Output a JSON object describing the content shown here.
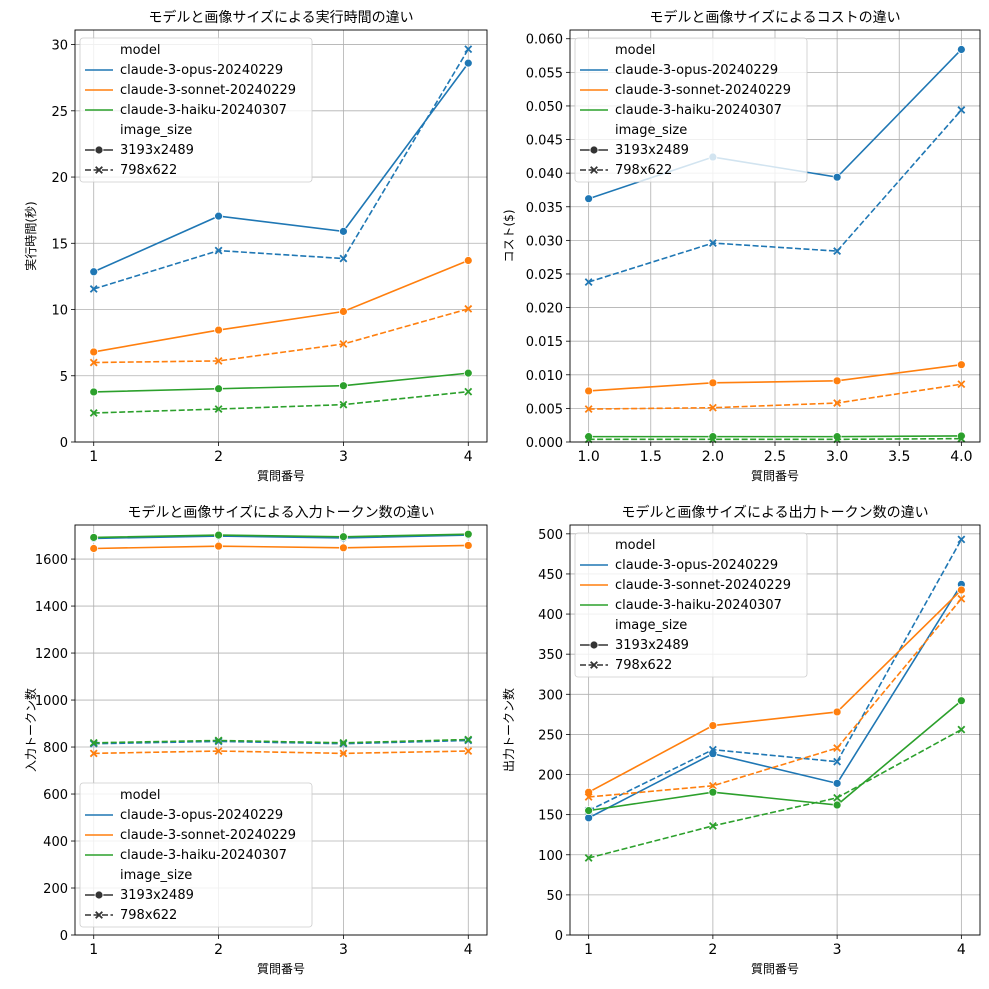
{
  "colors": {
    "opus": "#1f77b4",
    "sonnet": "#ff7f0e",
    "haiku": "#2ca02c",
    "grid": "#b0b0b0"
  },
  "legend": {
    "hue_title": "model",
    "style_title": "image_size",
    "models": [
      "claude-3-opus-20240229",
      "claude-3-sonnet-20240229",
      "claude-3-haiku-20240307"
    ],
    "sizes": [
      "3193x2489",
      "798x622"
    ]
  },
  "chart_data": [
    {
      "type": "line",
      "title": "モデルと画像サイズによる実行時間の違い",
      "xlabel": "質問番号",
      "ylabel": "実行時間(秒)",
      "x": [
        1,
        2,
        3,
        4
      ],
      "xticks": [
        "1",
        "2",
        "3",
        "4"
      ],
      "yticks": [
        "0",
        "5",
        "10",
        "15",
        "20",
        "25",
        "30"
      ],
      "xlim": [
        0.85,
        4.15
      ],
      "ylim": [
        0,
        31.1
      ],
      "grid": true,
      "legend_placement": "upper-left",
      "series": [
        {
          "model": "claude-3-opus-20240229",
          "image_size": "3193x2489",
          "values": [
            12.85,
            17.05,
            15.9,
            28.6
          ]
        },
        {
          "model": "claude-3-opus-20240229",
          "image_size": "798x622",
          "values": [
            11.55,
            14.45,
            13.85,
            29.65
          ]
        },
        {
          "model": "claude-3-sonnet-20240229",
          "image_size": "3193x2489",
          "values": [
            6.8,
            8.45,
            9.85,
            13.7
          ]
        },
        {
          "model": "claude-3-sonnet-20240229",
          "image_size": "798x622",
          "values": [
            6.0,
            6.12,
            7.4,
            10.05
          ]
        },
        {
          "model": "claude-3-haiku-20240307",
          "image_size": "3193x2489",
          "values": [
            3.78,
            4.02,
            4.25,
            5.2
          ]
        },
        {
          "model": "claude-3-haiku-20240307",
          "image_size": "798x622",
          "values": [
            2.19,
            2.49,
            2.82,
            3.8
          ]
        }
      ]
    },
    {
      "type": "line",
      "title": "モデルと画像サイズによるコストの違い",
      "xlabel": "質問番号",
      "ylabel": "コスト($)",
      "x": [
        1,
        2,
        3,
        4
      ],
      "xticks": [
        "1.0",
        "1.5",
        "2.0",
        "2.5",
        "3.0",
        "3.5",
        "4.0"
      ],
      "yticks": [
        "0.000",
        "0.005",
        "0.010",
        "0.015",
        "0.020",
        "0.025",
        "0.030",
        "0.035",
        "0.040",
        "0.045",
        "0.050",
        "0.055",
        "0.060"
      ],
      "xlim": [
        0.85,
        4.15
      ],
      "ylim": [
        0,
        0.0613
      ],
      "grid": true,
      "legend_placement": "upper-left",
      "series": [
        {
          "model": "claude-3-opus-20240229",
          "image_size": "3193x2489",
          "values": [
            0.0362,
            0.0424,
            0.0394,
            0.0584
          ]
        },
        {
          "model": "claude-3-opus-20240229",
          "image_size": "798x622",
          "values": [
            0.0238,
            0.0296,
            0.0284,
            0.0494
          ]
        },
        {
          "model": "claude-3-sonnet-20240229",
          "image_size": "3193x2489",
          "values": [
            0.0076,
            0.0088,
            0.0091,
            0.0115
          ]
        },
        {
          "model": "claude-3-sonnet-20240229",
          "image_size": "798x622",
          "values": [
            0.0049,
            0.0051,
            0.0058,
            0.0086
          ]
        },
        {
          "model": "claude-3-haiku-20240307",
          "image_size": "3193x2489",
          "values": [
            0.0008,
            0.0008,
            0.0008,
            0.0009
          ]
        },
        {
          "model": "claude-3-haiku-20240307",
          "image_size": "798x622",
          "values": [
            0.0004,
            0.0004,
            0.0004,
            0.0005
          ]
        }
      ]
    },
    {
      "type": "line",
      "title": "モデルと画像サイズによる入力トークン数の違い",
      "xlabel": "質問番号",
      "ylabel": "入力トークン数",
      "x": [
        1,
        2,
        3,
        4
      ],
      "xticks": [
        "1",
        "2",
        "3",
        "4"
      ],
      "yticks": [
        "0",
        "200",
        "400",
        "600",
        "800",
        "1000",
        "1200",
        "1400",
        "1600"
      ],
      "xlim": [
        0.85,
        4.15
      ],
      "ylim": [
        0,
        1745
      ],
      "grid": true,
      "legend_placement": "lower-left",
      "series": [
        {
          "model": "claude-3-opus-20240229",
          "image_size": "3193x2489",
          "values": [
            1688,
            1698,
            1690,
            1702
          ]
        },
        {
          "model": "claude-3-opus-20240229",
          "image_size": "798x622",
          "values": [
            814,
            824,
            814,
            828
          ]
        },
        {
          "model": "claude-3-sonnet-20240229",
          "image_size": "3193x2489",
          "values": [
            1645,
            1655,
            1648,
            1658
          ]
        },
        {
          "model": "claude-3-sonnet-20240229",
          "image_size": "798x622",
          "values": [
            773,
            783,
            773,
            783
          ]
        },
        {
          "model": "claude-3-haiku-20240307",
          "image_size": "3193x2489",
          "values": [
            1692,
            1702,
            1695,
            1706
          ]
        },
        {
          "model": "claude-3-haiku-20240307",
          "image_size": "798x622",
          "values": [
            818,
            828,
            818,
            832
          ]
        }
      ]
    },
    {
      "type": "line",
      "title": "モデルと画像サイズによる出力トークン数の違い",
      "xlabel": "質問番号",
      "ylabel": "出力トークン数",
      "x": [
        1,
        2,
        3,
        4
      ],
      "xticks": [
        "1",
        "2",
        "3",
        "4"
      ],
      "yticks": [
        "0",
        "50",
        "100",
        "150",
        "200",
        "250",
        "300",
        "350",
        "400",
        "450",
        "500"
      ],
      "xlim": [
        0.85,
        4.15
      ],
      "ylim": [
        0,
        511
      ],
      "grid": true,
      "legend_placement": "upper-left",
      "series": [
        {
          "model": "claude-3-opus-20240229",
          "image_size": "3193x2489",
          "values": [
            146,
            226,
            189,
            437
          ]
        },
        {
          "model": "claude-3-opus-20240229",
          "image_size": "798x622",
          "values": [
            155,
            231,
            216,
            493
          ]
        },
        {
          "model": "claude-3-sonnet-20240229",
          "image_size": "3193x2489",
          "values": [
            178,
            261,
            278,
            430
          ]
        },
        {
          "model": "claude-3-sonnet-20240229",
          "image_size": "798x622",
          "values": [
            172,
            186,
            233,
            419
          ]
        },
        {
          "model": "claude-3-haiku-20240307",
          "image_size": "3193x2489",
          "values": [
            155,
            178,
            162,
            292
          ]
        },
        {
          "model": "claude-3-haiku-20240307",
          "image_size": "798x622",
          "values": [
            96,
            136,
            171,
            256
          ]
        }
      ]
    }
  ]
}
